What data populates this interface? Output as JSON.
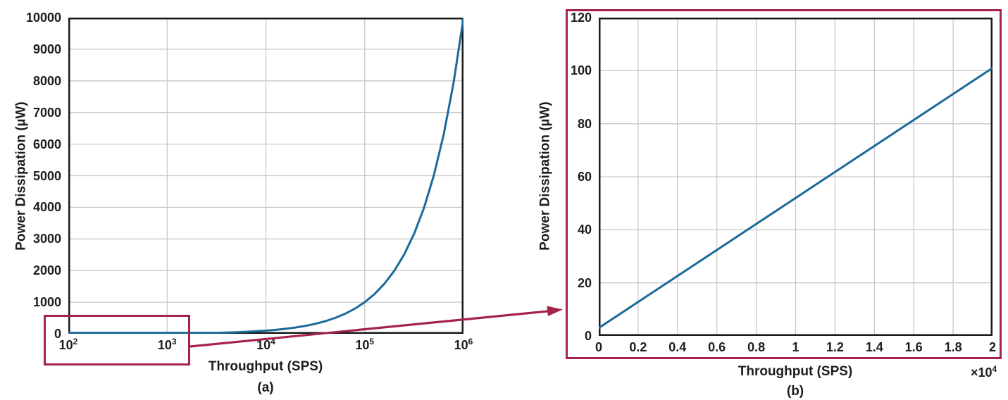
{
  "figure": {
    "background": "#ffffff",
    "accent_red": "#a52349",
    "line_blue": "#1c6a99",
    "grid_color": "#c9c9c9",
    "frame_color": "#1a1a1a",
    "text_color": "#1d1d1d"
  },
  "chart_data": [
    {
      "id": "a",
      "type": "line",
      "caption": "(a)",
      "xlabel": "Throughput (SPS)",
      "ylabel": "Power Dissipation (µW)",
      "x_scale": "log",
      "xlim": [
        100,
        1000000
      ],
      "x_tick_labels": [
        "10^2",
        "10^3",
        "10^4",
        "10^5",
        "10^6"
      ],
      "ylim": [
        0,
        10000
      ],
      "y_ticks": [
        0,
        1000,
        2000,
        3000,
        4000,
        5000,
        6000,
        7000,
        8000,
        9000,
        10000
      ],
      "grid": true,
      "legend": "none",
      "series": [
        {
          "name": "power-dissipation-vs-throughput",
          "x": [
            100,
            126,
            158,
            200,
            251,
            316,
            398,
            501,
            631,
            794,
            1000,
            1259,
            1585,
            1995,
            2512,
            3162,
            3981,
            5012,
            6310,
            7943,
            10000,
            12590,
            15850,
            19950,
            25120,
            31620,
            39810,
            50120,
            63100,
            79430,
            100000,
            125900,
            158500,
            199500,
            251200,
            316200,
            398100,
            501200,
            631000,
            794300,
            1000000
          ],
          "y": [
            1,
            1.26,
            1.58,
            2,
            2.51,
            3.16,
            3.98,
            5.01,
            6.31,
            7.94,
            10,
            12.6,
            15.8,
            20,
            25.1,
            31.6,
            39.8,
            50.1,
            63.1,
            79.4,
            100,
            126,
            158,
            200,
            251,
            316,
            398,
            501,
            631,
            794,
            1000,
            1259,
            1585,
            1995,
            2512,
            3162,
            3981,
            5012,
            6310,
            7943,
            10000
          ]
        }
      ]
    },
    {
      "id": "b",
      "type": "line",
      "caption": "(b)",
      "xlabel": "Throughput (SPS)",
      "ylabel": "Power Dissipation (µW)",
      "x_scale": "linear",
      "xlim": [
        0,
        20000
      ],
      "x_tick_labels": [
        "0",
        "0.2",
        "0.4",
        "0.6",
        "0.8",
        "1",
        "1.2",
        "1.4",
        "1.6",
        "1.8",
        "2"
      ],
      "x_multiplier_label": "×10^4",
      "ylim": [
        0,
        120
      ],
      "y_ticks": [
        0,
        20,
        40,
        60,
        80,
        100,
        120
      ],
      "grid": true,
      "legend": "none",
      "series": [
        {
          "name": "power-dissipation-vs-throughput-zoom",
          "x": [
            0,
            20000
          ],
          "y": [
            3,
            101
          ]
        }
      ]
    }
  ],
  "annotations": {
    "zoom_rectangle": "red rectangle on chart (a) highlighting the low-throughput region (about 100 SPS to 2 kSPS near 0 µW)",
    "zoom_arrow": "red arrow from the highlighted rectangle on chart (a) to the red frame around chart (b)",
    "zoom_frame": "red frame surrounding chart (b) indicating it is the magnified view"
  }
}
